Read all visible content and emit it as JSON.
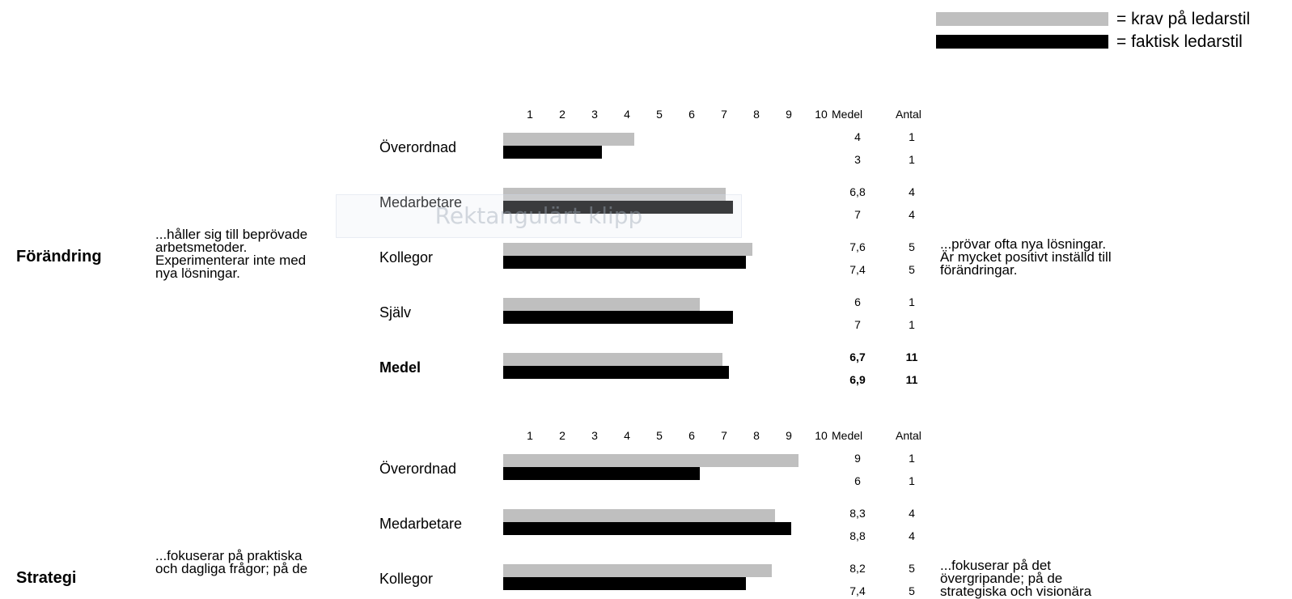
{
  "legend": [
    {
      "label": "= krav på ledarstil",
      "color": "#bfbfbf"
    },
    {
      "label": "= faktisk ledarstil",
      "color": "#000000"
    }
  ],
  "overlay_text": "Rektangulärt klipp",
  "chart_data": [
    {
      "type": "bar",
      "orientation": "horizontal",
      "title": "Förändring",
      "left_description": "...håller sig till beprövade\narbetsmetoder.\nExperimenterar inte med\nnya lösningar.",
      "right_description": "...prövar  ofta nya lösningar.\nÄr mycket positivt inställd till\nförändringar.",
      "xticks": [
        "1",
        "2",
        "3",
        "4",
        "5",
        "6",
        "7",
        "8",
        "9",
        "10"
      ],
      "xlim": [
        0,
        10
      ],
      "column_headers": [
        "Medel",
        "Antal"
      ],
      "series_names": [
        "= krav på ledarstil",
        "= faktisk ledarstil"
      ],
      "rows": [
        {
          "category": "Överordnad",
          "krav": 4,
          "faktisk": 3,
          "krav_text": "4",
          "faktisk_text": "3",
          "antal": [
            "1",
            "1"
          ],
          "bold": false
        },
        {
          "category": "Medarbetare",
          "krav": 6.8,
          "faktisk": 7,
          "krav_text": "6,8",
          "faktisk_text": "7",
          "antal": [
            "4",
            "4"
          ],
          "bold": false
        },
        {
          "category": "Kollegor",
          "krav": 7.6,
          "faktisk": 7.4,
          "krav_text": "7,6",
          "faktisk_text": "7,4",
          "antal": [
            "5",
            "5"
          ],
          "bold": false
        },
        {
          "category": "Själv",
          "krav": 6,
          "faktisk": 7,
          "krav_text": "6",
          "faktisk_text": "7",
          "antal": [
            "1",
            "1"
          ],
          "bold": false
        },
        {
          "category": "Medel",
          "krav": 6.7,
          "faktisk": 6.9,
          "krav_text": "6,7",
          "faktisk_text": "6,9",
          "antal": [
            "11",
            "11"
          ],
          "bold": true
        }
      ]
    },
    {
      "type": "bar",
      "orientation": "horizontal",
      "title": "Strategi",
      "left_description": "...fokuserar på praktiska\noch dagliga frågor; på de",
      "right_description": "...fokuserar på det\növergripande; på de\nstrategiska och visionära",
      "xticks": [
        "1",
        "2",
        "3",
        "4",
        "5",
        "6",
        "7",
        "8",
        "9",
        "10"
      ],
      "xlim": [
        0,
        10
      ],
      "column_headers": [
        "Medel",
        "Antal"
      ],
      "series_names": [
        "= krav på ledarstil",
        "= faktisk ledarstil"
      ],
      "rows": [
        {
          "category": "Överordnad",
          "krav": 9,
          "faktisk": 6,
          "krav_text": "9",
          "faktisk_text": "6",
          "antal": [
            "1",
            "1"
          ],
          "bold": false
        },
        {
          "category": "Medarbetare",
          "krav": 8.3,
          "faktisk": 8.8,
          "krav_text": "8,3",
          "faktisk_text": "8,8",
          "antal": [
            "4",
            "4"
          ],
          "bold": false
        },
        {
          "category": "Kollegor",
          "krav": 8.2,
          "faktisk": 7.4,
          "krav_text": "8,2",
          "faktisk_text": "7,4",
          "antal": [
            "5",
            "5"
          ],
          "bold": false
        }
      ]
    }
  ]
}
